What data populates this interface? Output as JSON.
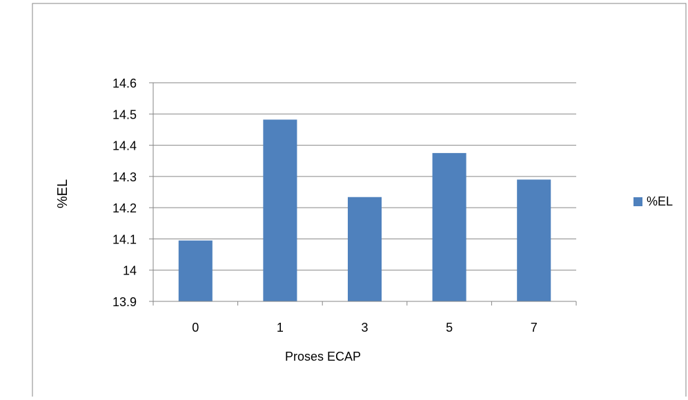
{
  "chart_data": {
    "type": "bar",
    "title": "",
    "xlabel": "Proses ECAP",
    "ylabel": "%EL",
    "categories": [
      "0",
      "1",
      "3",
      "5",
      "7"
    ],
    "series": [
      {
        "name": "%EL",
        "values": [
          14.095,
          14.482,
          14.234,
          14.375,
          14.29
        ]
      }
    ],
    "ylim": [
      13.9,
      14.6
    ],
    "yticks": [
      "13.9",
      "14",
      "14.1",
      "14.2",
      "14.3",
      "14.4",
      "14.5",
      "14.6"
    ],
    "grid": true,
    "legend": "right",
    "colors": {
      "bar": "#4f81bd",
      "grid": "#868686",
      "axis": "#868686",
      "frame": "#868686"
    }
  }
}
